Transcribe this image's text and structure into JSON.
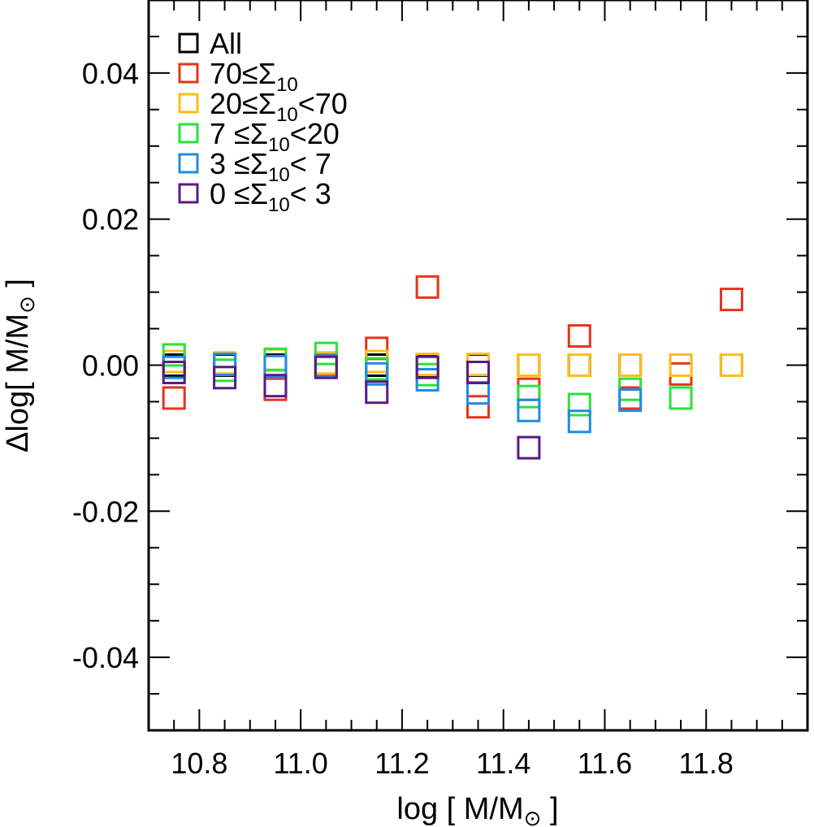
{
  "chart_data": {
    "type": "scatter",
    "marker": "open-square",
    "xlabel": {
      "pre": "log [ M/M",
      "sub": "⊙",
      "post": " ]"
    },
    "ylabel": {
      "pre": "Δlog[ M/M",
      "sub": "⊙",
      "post": " ]"
    },
    "xlim": [
      10.7,
      12.0
    ],
    "ylim": [
      -0.05,
      0.05
    ],
    "x_ticks": [
      10.8,
      11.0,
      11.2,
      11.4,
      11.6,
      11.8
    ],
    "x_tick_labels": [
      "10.8",
      "11.0",
      "11.2",
      "11.4",
      "11.6",
      "11.8"
    ],
    "y_ticks": [
      -0.04,
      -0.02,
      0.0,
      0.02,
      0.04
    ],
    "y_tick_labels": [
      "-0.04",
      "-0.02",
      "0.00",
      "0.02",
      "0.04"
    ],
    "legend_position": "top-left",
    "series": [
      {
        "name": "All",
        "legend": [
          {
            "t": "All"
          }
        ],
        "color": "#000000",
        "x": [
          10.75,
          10.85,
          10.95,
          11.05,
          11.15,
          11.25,
          11.35,
          11.45,
          11.55,
          11.65,
          11.75,
          11.85
        ],
        "y": [
          0,
          0,
          0,
          0,
          0,
          0,
          0,
          0,
          0,
          0,
          0,
          0
        ]
      },
      {
        "name": "70≤Σ10",
        "legend": [
          {
            "t": "70≤Σ"
          },
          {
            "t": "10",
            "sub": true
          }
        ],
        "color": "#e8321e",
        "x": [
          10.75,
          10.85,
          10.95,
          11.05,
          11.15,
          11.25,
          11.35,
          11.45,
          11.55,
          11.65,
          11.75,
          11.85
        ],
        "y": [
          -0.0045,
          0.0002,
          -0.0033,
          0.0001,
          0.0023,
          0.0107,
          -0.0057,
          -0.0033,
          0.004,
          -0.0045,
          -0.0012,
          0.009
        ]
      },
      {
        "name": "20≤Σ10<70",
        "legend": [
          {
            "t": "20≤Σ"
          },
          {
            "t": "10",
            "sub": true
          },
          {
            "t": "<70"
          }
        ],
        "color": "#fbbf14",
        "x": [
          10.75,
          10.85,
          10.95,
          11.05,
          11.15,
          11.25,
          11.35,
          11.45,
          11.55,
          11.65,
          11.75,
          11.85
        ],
        "y": [
          0.0005,
          0.0003,
          0.0007,
          0.0003,
          0.0005,
          0.0001,
          0.0001,
          0.0,
          0.0,
          0.0,
          0.0,
          0.0
        ]
      },
      {
        "name": "7 ≤Σ10<20",
        "legend": [
          {
            "t": " 7 ≤Σ"
          },
          {
            "t": "10",
            "sub": true
          },
          {
            "t": "<20"
          }
        ],
        "color": "#29e23b",
        "x": [
          10.75,
          10.85,
          10.95,
          11.05,
          11.15,
          11.25,
          11.35,
          11.45,
          11.55,
          11.65,
          11.75
        ],
        "y": [
          0.0014,
          -0.0007,
          0.0008,
          0.0016,
          -0.0005,
          -0.0013,
          -0.001,
          -0.0043,
          -0.0054,
          -0.0033,
          -0.0045
        ]
      },
      {
        "name": "3 ≤Σ10< 7",
        "legend": [
          {
            "t": " 3 ≤Σ"
          },
          {
            "t": "10",
            "sub": true
          },
          {
            "t": "< 7"
          }
        ],
        "color": "#1e8ce6",
        "x": [
          10.75,
          10.85,
          10.95,
          11.05,
          11.15,
          11.25,
          11.35,
          11.45,
          11.55,
          11.65
        ],
        "y": [
          -0.0003,
          0.0001,
          -0.0002,
          -0.0001,
          -0.0012,
          -0.002,
          -0.0038,
          -0.0062,
          -0.0077,
          -0.0048
        ]
      },
      {
        "name": "0 ≤Σ10< 3",
        "legend": [
          {
            "t": " 0 ≤Σ"
          },
          {
            "t": "10",
            "sub": true
          },
          {
            "t": "< 3"
          }
        ],
        "color": "#5a1a82",
        "x": [
          10.75,
          10.85,
          10.95,
          11.05,
          11.15,
          11.25,
          11.35,
          11.45
        ],
        "y": [
          -0.001,
          -0.0017,
          -0.0028,
          -0.0003,
          -0.0037,
          -0.0003,
          -0.001,
          -0.0113
        ]
      }
    ]
  }
}
